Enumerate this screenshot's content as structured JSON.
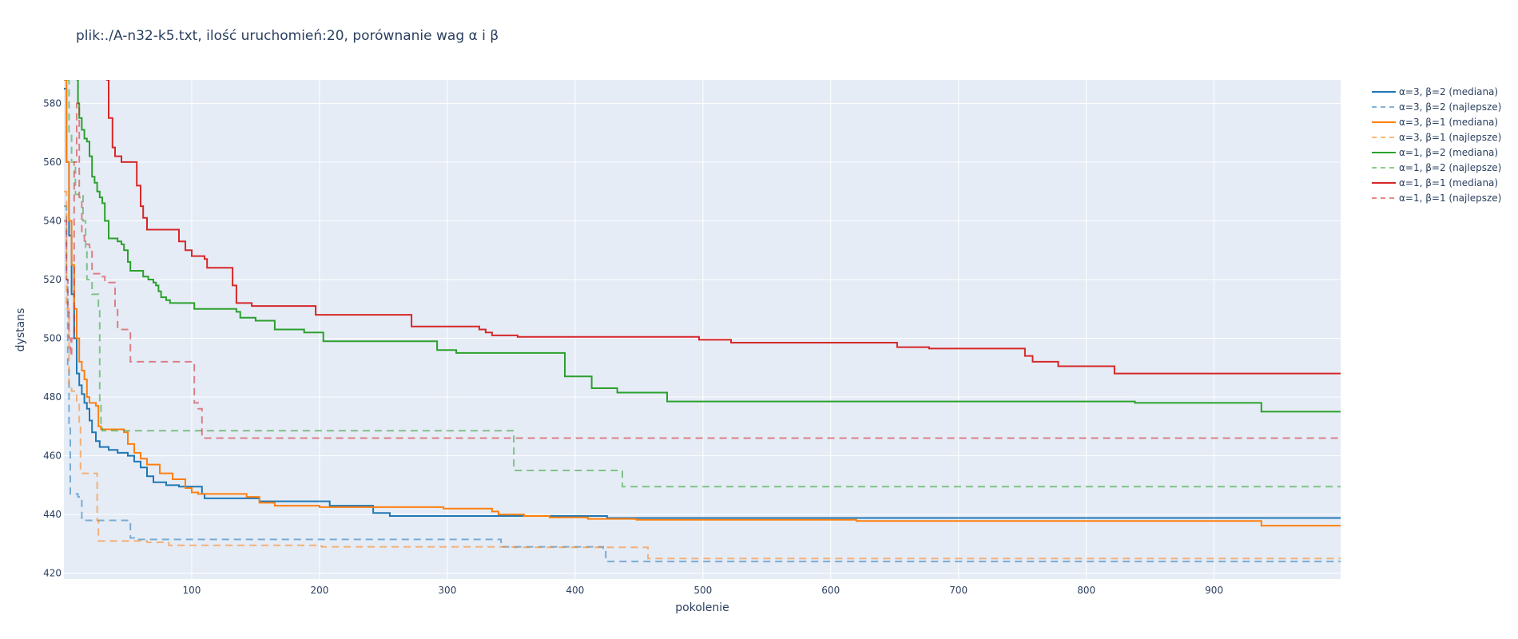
{
  "chart_data": {
    "type": "line",
    "title": "plik:./A-n32-k5.txt, ilość uruchomień:20, porównanie wag α i β",
    "xlabel": "pokolenie",
    "ylabel": "dystans",
    "xlim": [
      0,
      999
    ],
    "ylim": [
      418,
      588
    ],
    "xticks": [
      100,
      200,
      300,
      400,
      500,
      600,
      700,
      800,
      900
    ],
    "yticks": [
      420,
      440,
      460,
      480,
      500,
      520,
      540,
      560,
      580
    ],
    "grid": true,
    "legend_position": "top-right",
    "plot_background": "#e5ecf6",
    "series": [
      {
        "name": "α=3, β=2 (mediana)",
        "color": "#1f77b4",
        "dash": "solid",
        "points": [
          [
            0,
            585
          ],
          [
            2,
            560
          ],
          [
            4,
            535
          ],
          [
            6,
            515
          ],
          [
            8,
            500
          ],
          [
            10,
            488
          ],
          [
            12,
            484
          ],
          [
            14,
            481
          ],
          [
            16,
            478
          ],
          [
            18,
            476
          ],
          [
            20,
            472
          ],
          [
            22,
            468
          ],
          [
            25,
            465
          ],
          [
            28,
            463
          ],
          [
            35,
            462
          ],
          [
            42,
            461
          ],
          [
            50,
            460
          ],
          [
            55,
            458
          ],
          [
            60,
            456
          ],
          [
            65,
            453
          ],
          [
            70,
            451
          ],
          [
            80,
            450
          ],
          [
            90,
            449.5
          ],
          [
            105,
            449.5
          ],
          [
            108,
            447
          ],
          [
            110,
            445.5
          ],
          [
            150,
            445.5
          ],
          [
            153,
            444.5
          ],
          [
            205,
            444.5
          ],
          [
            208,
            443
          ],
          [
            240,
            443
          ],
          [
            242,
            440.5
          ],
          [
            253,
            440.5
          ],
          [
            255,
            439.5
          ],
          [
            330,
            439.5
          ],
          [
            355,
            439.5
          ],
          [
            420,
            439.5
          ],
          [
            425,
            438.8
          ],
          [
            999,
            438.8
          ]
        ]
      },
      {
        "name": "α=3, β=2 (najlepsze)",
        "color": "#1f77b4",
        "dash": "dashed",
        "points": [
          [
            0,
            545
          ],
          [
            2,
            520
          ],
          [
            3,
            490
          ],
          [
            4,
            470
          ],
          [
            5,
            447
          ],
          [
            10,
            447
          ],
          [
            11,
            446
          ],
          [
            13,
            446
          ],
          [
            14,
            438
          ],
          [
            50,
            438
          ],
          [
            52,
            432
          ],
          [
            55,
            431.5
          ],
          [
            340,
            431.5
          ],
          [
            342,
            429
          ],
          [
            420,
            429
          ],
          [
            422,
            428.5
          ],
          [
            424,
            424
          ],
          [
            999,
            424
          ]
        ]
      },
      {
        "name": "α=3, β=1 (mediana)",
        "color": "#ff7f0e",
        "dash": "solid",
        "points": [
          [
            0,
            588
          ],
          [
            2,
            560
          ],
          [
            4,
            540
          ],
          [
            6,
            525
          ],
          [
            8,
            510
          ],
          [
            10,
            500
          ],
          [
            12,
            492
          ],
          [
            14,
            489
          ],
          [
            16,
            486
          ],
          [
            18,
            480
          ],
          [
            20,
            478
          ],
          [
            25,
            477
          ],
          [
            27,
            470
          ],
          [
            29,
            469
          ],
          [
            45,
            469
          ],
          [
            47,
            468
          ],
          [
            50,
            464
          ],
          [
            55,
            461
          ],
          [
            60,
            459
          ],
          [
            65,
            457
          ],
          [
            75,
            454
          ],
          [
            85,
            452
          ],
          [
            95,
            449
          ],
          [
            100,
            447.5
          ],
          [
            105,
            447
          ],
          [
            140,
            447
          ],
          [
            143,
            446
          ],
          [
            150,
            446
          ],
          [
            153,
            444
          ],
          [
            165,
            443
          ],
          [
            200,
            442.5
          ],
          [
            230,
            442.5
          ],
          [
            295,
            442.5
          ],
          [
            297,
            442
          ],
          [
            330,
            442
          ],
          [
            335,
            441
          ],
          [
            340,
            440
          ],
          [
            360,
            439.5
          ],
          [
            380,
            439
          ],
          [
            405,
            439
          ],
          [
            410,
            438.5
          ],
          [
            445,
            438.5
          ],
          [
            448,
            438.2
          ],
          [
            610,
            438.2
          ],
          [
            620,
            437.8
          ],
          [
            935,
            437.8
          ],
          [
            937,
            436.2
          ],
          [
            999,
            436.2
          ]
        ]
      },
      {
        "name": "α=3, β=1 (najlepsze)",
        "color": "#ff7f0e",
        "dash": "dashed",
        "points": [
          [
            0,
            550
          ],
          [
            2,
            510
          ],
          [
            4,
            484
          ],
          [
            6,
            482
          ],
          [
            8,
            482
          ],
          [
            10,
            478
          ],
          [
            12,
            470
          ],
          [
            13,
            454
          ],
          [
            25,
            454
          ],
          [
            26,
            438
          ],
          [
            27,
            431
          ],
          [
            60,
            431
          ],
          [
            65,
            430.5
          ],
          [
            80,
            430.5
          ],
          [
            82,
            429.5
          ],
          [
            200,
            429.2
          ],
          [
            202,
            429
          ],
          [
            350,
            429
          ],
          [
            352,
            428.8
          ],
          [
            455,
            428.8
          ],
          [
            457,
            425
          ],
          [
            999,
            425
          ]
        ]
      },
      {
        "name": "α=1, β=2 (mediana)",
        "color": "#2ca02c",
        "dash": "solid",
        "points": [
          [
            10,
            588
          ],
          [
            11,
            580
          ],
          [
            12,
            575
          ],
          [
            14,
            571
          ],
          [
            16,
            568
          ],
          [
            18,
            567
          ],
          [
            20,
            562
          ],
          [
            22,
            555
          ],
          [
            24,
            553
          ],
          [
            26,
            550
          ],
          [
            28,
            548
          ],
          [
            30,
            546
          ],
          [
            32,
            540
          ],
          [
            35,
            534
          ],
          [
            40,
            534
          ],
          [
            42,
            533
          ],
          [
            45,
            532
          ],
          [
            47,
            530
          ],
          [
            50,
            526
          ],
          [
            52,
            523
          ],
          [
            60,
            523
          ],
          [
            62,
            521
          ],
          [
            66,
            520
          ],
          [
            70,
            519
          ],
          [
            72,
            518
          ],
          [
            74,
            516
          ],
          [
            76,
            514
          ],
          [
            80,
            513
          ],
          [
            83,
            512
          ],
          [
            100,
            512
          ],
          [
            102,
            510
          ],
          [
            130,
            510
          ],
          [
            135,
            509
          ],
          [
            138,
            507
          ],
          [
            148,
            507
          ],
          [
            150,
            506
          ],
          [
            162,
            506
          ],
          [
            165,
            503
          ],
          [
            185,
            503
          ],
          [
            188,
            502
          ],
          [
            200,
            502
          ],
          [
            203,
            499
          ],
          [
            290,
            499
          ],
          [
            292,
            496
          ],
          [
            305,
            496
          ],
          [
            307,
            495
          ],
          [
            390,
            495
          ],
          [
            392,
            487
          ],
          [
            410,
            487
          ],
          [
            413,
            483
          ],
          [
            430,
            483
          ],
          [
            433,
            481.5
          ],
          [
            470,
            481.5
          ],
          [
            472,
            478.5
          ],
          [
            835,
            478.5
          ],
          [
            838,
            478
          ],
          [
            935,
            478
          ],
          [
            937,
            475
          ],
          [
            999,
            475
          ]
        ]
      },
      {
        "name": "α=1, β=2 (najlepsze)",
        "color": "#2ca02c",
        "dash": "dashed",
        "points": [
          [
            2,
            588
          ],
          [
            4,
            570
          ],
          [
            6,
            560
          ],
          [
            8,
            560
          ],
          [
            9,
            549
          ],
          [
            13,
            549
          ],
          [
            15,
            540
          ],
          [
            17,
            531
          ],
          [
            18,
            520
          ],
          [
            20,
            520
          ],
          [
            22,
            515
          ],
          [
            26,
            515
          ],
          [
            27,
            510
          ],
          [
            28,
            478
          ],
          [
            29,
            470
          ],
          [
            30,
            468.5
          ],
          [
            350,
            468.5
          ],
          [
            352,
            455
          ],
          [
            435,
            455
          ],
          [
            437,
            449.5
          ],
          [
            999,
            449.5
          ]
        ]
      },
      {
        "name": "α=1, β=1 (mediana)",
        "color": "#d62728",
        "dash": "solid",
        "points": [
          [
            33,
            588
          ],
          [
            35,
            575
          ],
          [
            38,
            565
          ],
          [
            40,
            562
          ],
          [
            45,
            560
          ],
          [
            55,
            560
          ],
          [
            57,
            552
          ],
          [
            60,
            545
          ],
          [
            62,
            541
          ],
          [
            65,
            537
          ],
          [
            88,
            537
          ],
          [
            90,
            533
          ],
          [
            95,
            530
          ],
          [
            100,
            528
          ],
          [
            110,
            527
          ],
          [
            112,
            524
          ],
          [
            130,
            524
          ],
          [
            132,
            518
          ],
          [
            135,
            512
          ],
          [
            145,
            512
          ],
          [
            147,
            511
          ],
          [
            195,
            511
          ],
          [
            197,
            508
          ],
          [
            270,
            508
          ],
          [
            272,
            504
          ],
          [
            320,
            504
          ],
          [
            325,
            503
          ],
          [
            330,
            502
          ],
          [
            335,
            501
          ],
          [
            350,
            501
          ],
          [
            355,
            500.5
          ],
          [
            495,
            500.5
          ],
          [
            497,
            499.5
          ],
          [
            520,
            499.5
          ],
          [
            522,
            498.5
          ],
          [
            650,
            498.5
          ],
          [
            652,
            497
          ],
          [
            675,
            497
          ],
          [
            677,
            496.5
          ],
          [
            750,
            496.5
          ],
          [
            752,
            494
          ],
          [
            758,
            492
          ],
          [
            775,
            492
          ],
          [
            778,
            490.5
          ],
          [
            820,
            490.5
          ],
          [
            822,
            488
          ],
          [
            999,
            488
          ]
        ]
      },
      {
        "name": "α=1, β=1 (najlepsze)",
        "color": "#d62728",
        "dash": "dashed",
        "points": [
          [
            0,
            540
          ],
          [
            2,
            520
          ],
          [
            3,
            510
          ],
          [
            4,
            500
          ],
          [
            5,
            494
          ],
          [
            6,
            500
          ],
          [
            8,
            560
          ],
          [
            10,
            580
          ],
          [
            12,
            548
          ],
          [
            14,
            535
          ],
          [
            16,
            532
          ],
          [
            20,
            531
          ],
          [
            22,
            522
          ],
          [
            30,
            521
          ],
          [
            32,
            519
          ],
          [
            38,
            519
          ],
          [
            40,
            510
          ],
          [
            42,
            503
          ],
          [
            50,
            503
          ],
          [
            52,
            492
          ],
          [
            100,
            492
          ],
          [
            102,
            478
          ],
          [
            105,
            476
          ],
          [
            108,
            466
          ],
          [
            999,
            466
          ]
        ]
      }
    ]
  }
}
